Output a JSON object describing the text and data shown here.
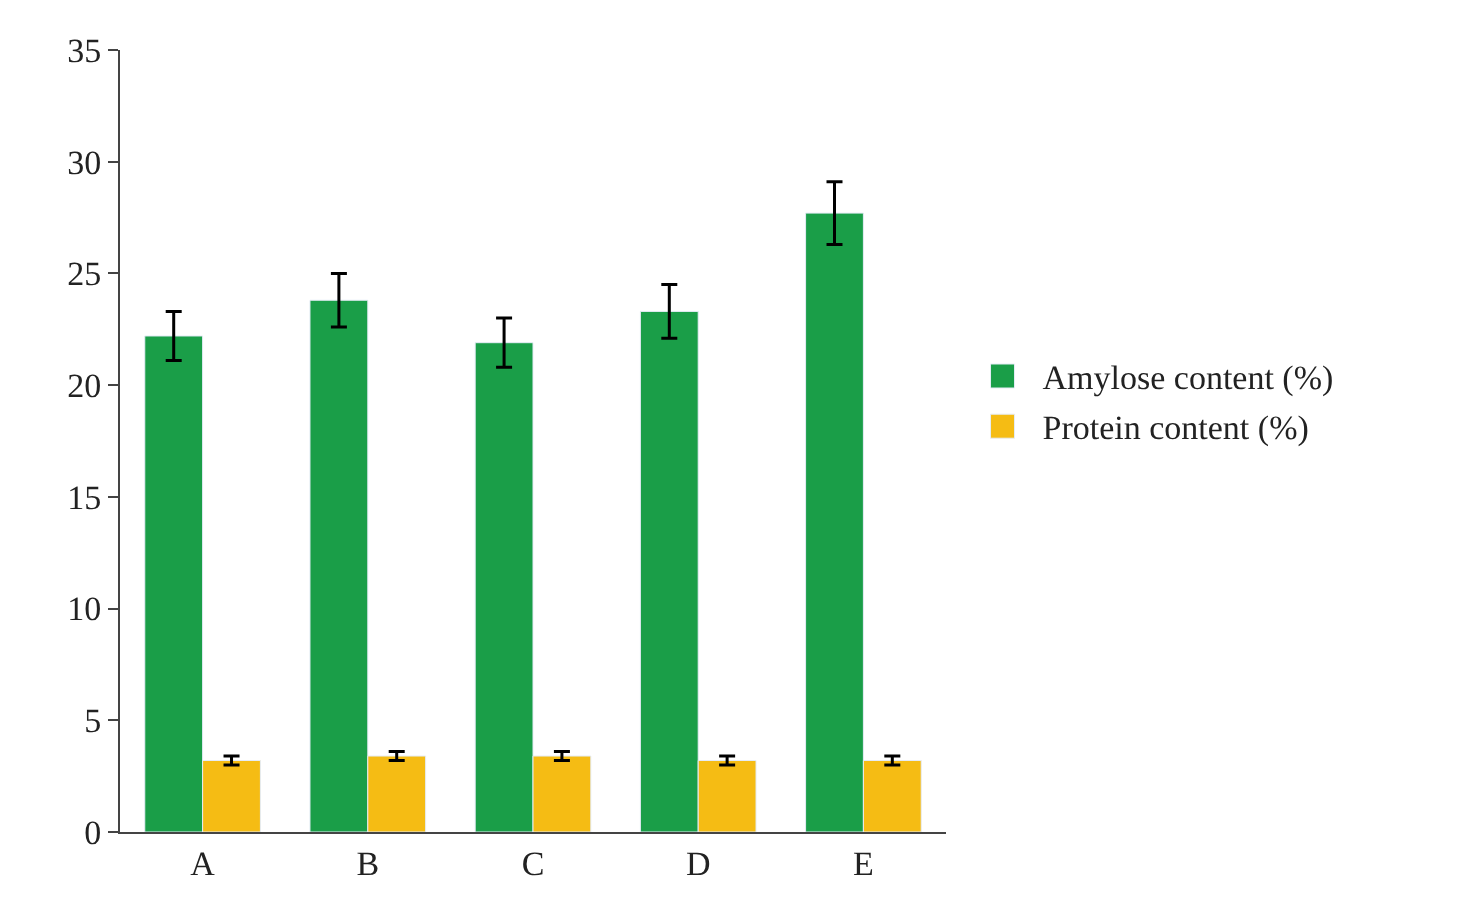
{
  "chart_data": {
    "type": "bar",
    "categories": [
      "A",
      "B",
      "C",
      "D",
      "E"
    ],
    "series": [
      {
        "name": "Amylose content (%)",
        "color": "#1a9e48",
        "values": [
          22.2,
          23.8,
          21.9,
          23.3,
          27.7
        ],
        "errors": [
          1.1,
          1.2,
          1.1,
          1.2,
          1.4
        ]
      },
      {
        "name": "Protein content (%)",
        "color": "#f5bc14",
        "values": [
          3.2,
          3.4,
          3.4,
          3.2,
          3.2
        ],
        "errors": [
          0.2,
          0.2,
          0.2,
          0.2,
          0.2
        ]
      }
    ],
    "ylim": [
      0,
      35
    ],
    "yticks": [
      0,
      5,
      10,
      15,
      20,
      25,
      30,
      35
    ],
    "legend": "right"
  }
}
